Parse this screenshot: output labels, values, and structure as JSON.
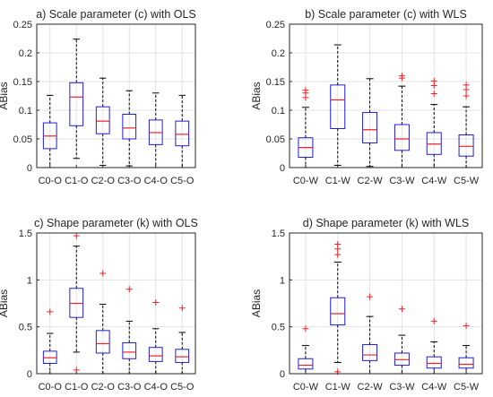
{
  "chart_data": [
    {
      "type": "box",
      "title": "a) Scale parameter (c) with OLS",
      "xlabel": "",
      "ylabel": "ABias",
      "ylim": [
        0,
        0.25
      ],
      "yticks": [
        "0",
        "0.05",
        "0.1",
        "0.15",
        "0.2",
        "0.25"
      ],
      "grid": true,
      "categories": [
        "C0-O",
        "C1-O",
        "C2-O",
        "C3-O",
        "C4-O",
        "C5-O"
      ],
      "boxes": [
        {
          "min": 0.0,
          "q1": 0.033,
          "median": 0.055,
          "q3": 0.078,
          "max": 0.126,
          "outliers": []
        },
        {
          "min": 0.016,
          "q1": 0.073,
          "median": 0.123,
          "q3": 0.148,
          "max": 0.224,
          "outliers": []
        },
        {
          "min": 0.004,
          "q1": 0.059,
          "median": 0.081,
          "q3": 0.106,
          "max": 0.156,
          "outliers": []
        },
        {
          "min": 0.003,
          "q1": 0.05,
          "median": 0.069,
          "q3": 0.093,
          "max": 0.134,
          "outliers": []
        },
        {
          "min": 0.0,
          "q1": 0.04,
          "median": 0.061,
          "q3": 0.083,
          "max": 0.13,
          "outliers": []
        },
        {
          "min": 0.0,
          "q1": 0.038,
          "median": 0.058,
          "q3": 0.081,
          "max": 0.126,
          "outliers": []
        }
      ]
    },
    {
      "type": "box",
      "title": "b) Scale parameter (c) with WLS",
      "xlabel": "",
      "ylabel": "ABias",
      "ylim": [
        0,
        0.25
      ],
      "yticks": [
        "0",
        "0.05",
        "0.1",
        "0.15",
        "0.2",
        "0.25"
      ],
      "grid": true,
      "categories": [
        "C0-W",
        "C1-W",
        "C2-W",
        "C3-W",
        "C4-W",
        "C5-W"
      ],
      "boxes": [
        {
          "min": 0.0,
          "q1": 0.018,
          "median": 0.035,
          "q3": 0.052,
          "max": 0.105,
          "outliers": [
            0.122,
            0.13,
            0.135
          ]
        },
        {
          "min": 0.004,
          "q1": 0.068,
          "median": 0.118,
          "q3": 0.144,
          "max": 0.214,
          "outliers": []
        },
        {
          "min": 0.002,
          "q1": 0.043,
          "median": 0.066,
          "q3": 0.096,
          "max": 0.155,
          "outliers": []
        },
        {
          "min": 0.0,
          "q1": 0.03,
          "median": 0.05,
          "q3": 0.075,
          "max": 0.142,
          "outliers": [
            0.156,
            0.16
          ]
        },
        {
          "min": 0.0,
          "q1": 0.023,
          "median": 0.041,
          "q3": 0.061,
          "max": 0.11,
          "outliers": [
            0.129,
            0.143,
            0.151
          ]
        },
        {
          "min": 0.0,
          "q1": 0.02,
          "median": 0.037,
          "q3": 0.057,
          "max": 0.106,
          "outliers": [
            0.125,
            0.136,
            0.144
          ]
        }
      ]
    },
    {
      "type": "box",
      "title": "c) Shape parameter (k) with OLS",
      "xlabel": "",
      "ylabel": "ABias",
      "ylim": [
        0,
        1.5
      ],
      "yticks": [
        "0",
        "0.5",
        "1",
        "1.5"
      ],
      "grid": true,
      "categories": [
        "C0-O",
        "C1-O",
        "C2-O",
        "C3-O",
        "C4-O",
        "C5-O"
      ],
      "boxes": [
        {
          "min": 0.0,
          "q1": 0.11,
          "median": 0.17,
          "q3": 0.24,
          "max": 0.43,
          "outliers": [
            0.66
          ]
        },
        {
          "min": 0.23,
          "q1": 0.6,
          "median": 0.75,
          "q3": 0.91,
          "max": 1.36,
          "outliers": [
            0.04,
            1.47
          ]
        },
        {
          "min": 0.0,
          "q1": 0.22,
          "median": 0.32,
          "q3": 0.46,
          "max": 0.74,
          "outliers": [
            1.07
          ]
        },
        {
          "min": 0.0,
          "q1": 0.16,
          "median": 0.23,
          "q3": 0.33,
          "max": 0.56,
          "outliers": [
            0.9
          ]
        },
        {
          "min": 0.0,
          "q1": 0.13,
          "median": 0.19,
          "q3": 0.28,
          "max": 0.48,
          "outliers": [
            0.76
          ]
        },
        {
          "min": 0.0,
          "q1": 0.12,
          "median": 0.18,
          "q3": 0.26,
          "max": 0.44,
          "outliers": [
            0.7
          ]
        }
      ]
    },
    {
      "type": "box",
      "title": "d) Shape parameter (k) with WLS",
      "xlabel": "",
      "ylabel": "ABias",
      "ylim": [
        0,
        1.5
      ],
      "yticks": [
        "0",
        "0.5",
        "1",
        "1.5"
      ],
      "grid": true,
      "categories": [
        "C0-W",
        "C1-W",
        "C2-W",
        "C3-W",
        "C4-W",
        "C5-W"
      ],
      "boxes": [
        {
          "min": 0.0,
          "q1": 0.05,
          "median": 0.09,
          "q3": 0.16,
          "max": 0.3,
          "outliers": [
            0.48
          ]
        },
        {
          "min": 0.12,
          "q1": 0.52,
          "median": 0.64,
          "q3": 0.81,
          "max": 1.19,
          "outliers": [
            0.02,
            1.27,
            1.33,
            1.38
          ]
        },
        {
          "min": 0.0,
          "q1": 0.14,
          "median": 0.2,
          "q3": 0.31,
          "max": 0.61,
          "outliers": [
            0.82
          ]
        },
        {
          "min": 0.0,
          "q1": 0.09,
          "median": 0.15,
          "q3": 0.22,
          "max": 0.41,
          "outliers": [
            0.69
          ]
        },
        {
          "min": 0.0,
          "q1": 0.06,
          "median": 0.11,
          "q3": 0.18,
          "max": 0.34,
          "outliers": [
            0.56
          ]
        },
        {
          "min": 0.0,
          "q1": 0.06,
          "median": 0.1,
          "q3": 0.17,
          "max": 0.3,
          "outliers": [
            0.51
          ]
        }
      ]
    }
  ],
  "colors": {
    "box": "#1f1fd6",
    "median": "#e8242a",
    "outlier": "#e8242a",
    "whisker": "#000000",
    "grid": "#e3e3e3",
    "axis": "#262626"
  }
}
